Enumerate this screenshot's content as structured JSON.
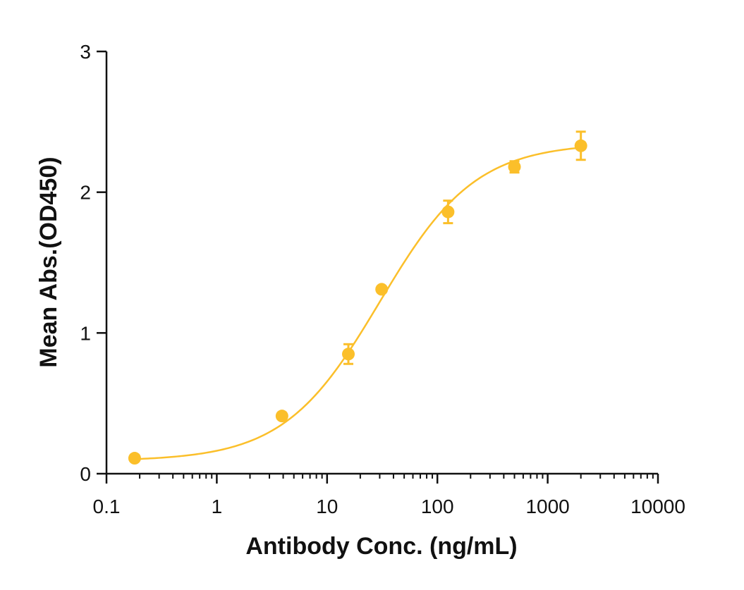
{
  "chart_data": {
    "type": "scatter",
    "title": "",
    "xlabel": "Antibody Conc. (ng/mL)",
    "ylabel": "Mean Abs.(OD450)",
    "x_scale": "log",
    "xlim": [
      0.1,
      10000
    ],
    "ylim": [
      0,
      3
    ],
    "x_ticks": [
      0.1,
      1,
      10,
      100,
      1000,
      10000
    ],
    "x_tick_labels": [
      "0.1",
      "1",
      "10",
      "100",
      "1000",
      "10000"
    ],
    "y_ticks": [
      0,
      1,
      2,
      3
    ],
    "y_tick_labels": [
      "0",
      "1",
      "2",
      "3"
    ],
    "grid": false,
    "legend": "none",
    "series": [
      {
        "color": "#FBBF2A",
        "points": [
          {
            "x": 0.18,
            "y": 0.11,
            "err": 0.0
          },
          {
            "x": 3.9,
            "y": 0.41,
            "err": 0.0
          },
          {
            "x": 15.6,
            "y": 0.85,
            "err": 0.07
          },
          {
            "x": 31.25,
            "y": 1.31,
            "err": 0.0
          },
          {
            "x": 125,
            "y": 1.86,
            "err": 0.08
          },
          {
            "x": 500,
            "y": 2.18,
            "err": 0.04
          },
          {
            "x": 2000,
            "y": 2.33,
            "err": 0.1
          }
        ],
        "fit_curve": {
          "model": "4PL",
          "bottom": 0.09,
          "top": 2.35,
          "ec50": 30,
          "hill": 1.0,
          "x_range": [
            0.18,
            2000
          ]
        }
      }
    ]
  }
}
